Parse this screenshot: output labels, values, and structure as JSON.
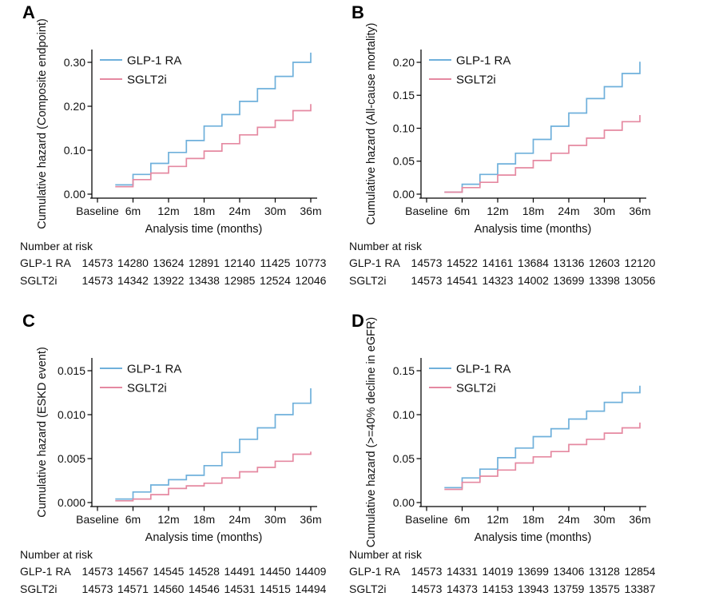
{
  "figure": {
    "background": "#ffffff",
    "colors": {
      "glp1_blue": "#6FB0DB",
      "sglt2i_pink": "#E589A1",
      "axis_black": "#000000"
    },
    "legend_position": "top-left-inside",
    "panels": [
      "A",
      "B",
      "C",
      "D"
    ]
  },
  "chart_data": [
    {
      "panel": "A",
      "type": "line",
      "step": true,
      "ylabel": "Cumulative hazard (Composite endpoint)",
      "xlabel": "Analysis time (months)",
      "x_tick_labels": [
        "Baseline",
        "6m",
        "12m",
        "18m",
        "24m",
        "30m",
        "36m"
      ],
      "x_tick_months": [
        0,
        6,
        12,
        18,
        24,
        30,
        36
      ],
      "y_tick_labels": [
        "0.00",
        "0.10",
        "0.20",
        "0.30"
      ],
      "y_tick_values": [
        0,
        0.1,
        0.2,
        0.3
      ],
      "ylim": [
        0,
        0.33
      ],
      "event_times_months": [
        3,
        6,
        9,
        12,
        15,
        18,
        21,
        24,
        27,
        30,
        33,
        36
      ],
      "series": [
        {
          "name": "GLP-1 RA",
          "color": "#6FB0DB",
          "values": [
            0.021,
            0.045,
            0.07,
            0.095,
            0.122,
            0.155,
            0.181,
            0.211,
            0.24,
            0.268,
            0.3,
            0.322
          ]
        },
        {
          "name": "SGLT2i",
          "color": "#E589A1",
          "values": [
            0.017,
            0.033,
            0.048,
            0.063,
            0.081,
            0.098,
            0.115,
            0.135,
            0.152,
            0.168,
            0.19,
            0.205
          ]
        }
      ],
      "number_at_risk": {
        "header": "Number at risk",
        "rows": [
          {
            "label": "GLP-1 RA",
            "values": [
              "14573",
              "14280",
              "13624",
              "12891",
              "12140",
              "11425",
              "10773"
            ]
          },
          {
            "label": "SGLT2i",
            "values": [
              "14573",
              "14342",
              "13922",
              "13438",
              "12985",
              "12524",
              "12046"
            ]
          }
        ]
      }
    },
    {
      "panel": "B",
      "type": "line",
      "step": true,
      "ylabel": "Cumulative hazard (All-cause mortality)",
      "xlabel": "Analysis time (months)",
      "x_tick_labels": [
        "Baseline",
        "6m",
        "12m",
        "18m",
        "24m",
        "30m",
        "36m"
      ],
      "x_tick_months": [
        0,
        6,
        12,
        18,
        24,
        30,
        36
      ],
      "y_tick_labels": [
        "0.00",
        "0.05",
        "0.10",
        "0.15",
        "0.20"
      ],
      "y_tick_values": [
        0,
        0.05,
        0.1,
        0.15,
        0.2
      ],
      "ylim": [
        0,
        0.21
      ],
      "event_times_months": [
        3,
        6,
        9,
        12,
        15,
        18,
        21,
        24,
        27,
        30,
        33,
        36
      ],
      "series": [
        {
          "name": "GLP-1 RA",
          "color": "#6FB0DB",
          "values": [
            0.003,
            0.015,
            0.03,
            0.046,
            0.062,
            0.083,
            0.103,
            0.123,
            0.145,
            0.163,
            0.183,
            0.201
          ]
        },
        {
          "name": "SGLT2i",
          "color": "#E589A1",
          "values": [
            0.003,
            0.01,
            0.018,
            0.029,
            0.04,
            0.051,
            0.062,
            0.074,
            0.085,
            0.097,
            0.11,
            0.12
          ]
        }
      ],
      "number_at_risk": {
        "header": "Number at risk",
        "rows": [
          {
            "label": "GLP-1 RA",
            "values": [
              "14573",
              "14522",
              "14161",
              "13684",
              "13136",
              "12603",
              "12120"
            ]
          },
          {
            "label": "SGLT2i",
            "values": [
              "14573",
              "14541",
              "14323",
              "14002",
              "13699",
              "13398",
              "13056"
            ]
          }
        ]
      }
    },
    {
      "panel": "C",
      "type": "line",
      "step": true,
      "ylabel": "Cumulative hazard (ESKD event)",
      "xlabel": "Analysis time (months)",
      "x_tick_labels": [
        "Baseline",
        "6m",
        "12m",
        "18m",
        "24m",
        "30m",
        "36m"
      ],
      "x_tick_months": [
        0,
        6,
        12,
        18,
        24,
        30,
        36
      ],
      "y_tick_labels": [
        "0.000",
        "0.005",
        "0.010",
        "0.015"
      ],
      "y_tick_values": [
        0,
        0.005,
        0.01,
        0.015
      ],
      "ylim": [
        0,
        0.016
      ],
      "event_times_months": [
        3,
        6,
        9,
        12,
        15,
        18,
        21,
        24,
        27,
        30,
        33,
        36
      ],
      "series": [
        {
          "name": "GLP-1 RA",
          "color": "#6FB0DB",
          "values": [
            0.0004,
            0.0012,
            0.002,
            0.0026,
            0.0031,
            0.0042,
            0.0057,
            0.0072,
            0.0085,
            0.01,
            0.0113,
            0.013
          ]
        },
        {
          "name": "SGLT2i",
          "color": "#E589A1",
          "values": [
            0.0002,
            0.0004,
            0.0009,
            0.0016,
            0.0019,
            0.0022,
            0.0028,
            0.0035,
            0.004,
            0.0047,
            0.0055,
            0.0058
          ]
        }
      ],
      "number_at_risk": {
        "header": "Number at risk",
        "rows": [
          {
            "label": "GLP-1 RA",
            "values": [
              "14573",
              "14567",
              "14545",
              "14528",
              "14491",
              "14450",
              "14409"
            ]
          },
          {
            "label": "SGLT2i",
            "values": [
              "14573",
              "14571",
              "14560",
              "14546",
              "14531",
              "14515",
              "14494"
            ]
          }
        ]
      }
    },
    {
      "panel": "D",
      "type": "line",
      "step": true,
      "ylabel": "Cumulative hazard (>=40% decline in eGFR)",
      "xlabel": "Analysis time (months)",
      "x_tick_labels": [
        "Baseline",
        "6m",
        "12m",
        "18m",
        "24m",
        "30m",
        "36m"
      ],
      "x_tick_months": [
        0,
        6,
        12,
        18,
        24,
        30,
        36
      ],
      "y_tick_labels": [
        "0.00",
        "0.05",
        "0.10",
        "0.15"
      ],
      "y_tick_values": [
        0,
        0.05,
        0.1,
        0.15
      ],
      "ylim": [
        0,
        0.16
      ],
      "event_times_months": [
        3,
        6,
        9,
        12,
        15,
        18,
        21,
        24,
        27,
        30,
        33,
        36
      ],
      "series": [
        {
          "name": "GLP-1 RA",
          "color": "#6FB0DB",
          "values": [
            0.017,
            0.028,
            0.038,
            0.051,
            0.062,
            0.075,
            0.084,
            0.095,
            0.104,
            0.114,
            0.125,
            0.133
          ]
        },
        {
          "name": "SGLT2i",
          "color": "#E589A1",
          "values": [
            0.015,
            0.023,
            0.03,
            0.037,
            0.045,
            0.052,
            0.058,
            0.066,
            0.072,
            0.079,
            0.085,
            0.091
          ]
        }
      ],
      "number_at_risk": {
        "header": "Number at risk",
        "rows": [
          {
            "label": "GLP-1 RA",
            "values": [
              "14573",
              "14331",
              "14019",
              "13699",
              "13406",
              "13128",
              "12854"
            ]
          },
          {
            "label": "SGLT2i",
            "values": [
              "14573",
              "14373",
              "14153",
              "13943",
              "13759",
              "13575",
              "13387"
            ]
          }
        ]
      }
    }
  ]
}
